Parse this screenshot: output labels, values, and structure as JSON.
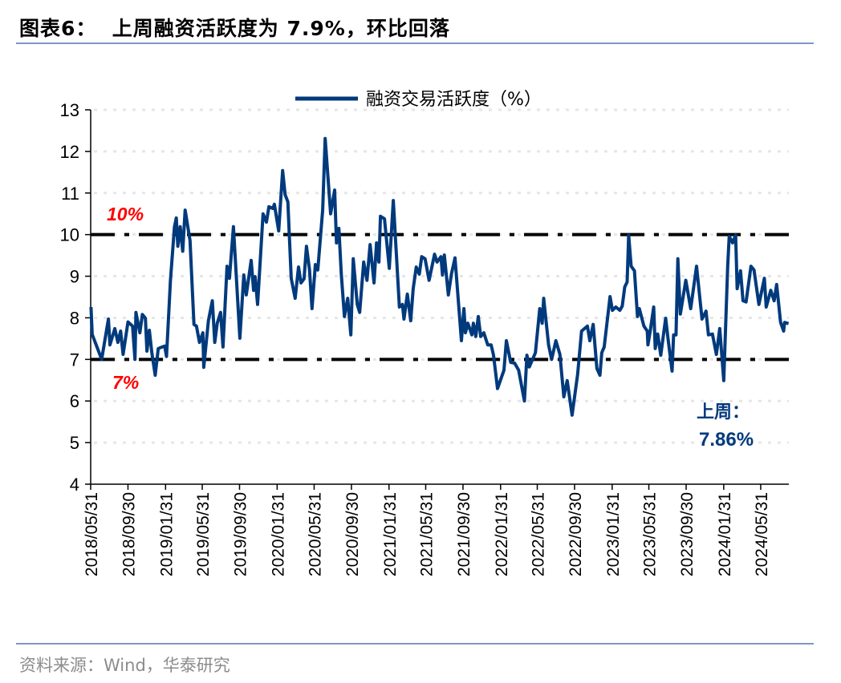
{
  "header": {
    "title": "图表6：  上周融资活跃度为 7.9%，环比回落"
  },
  "footer": {
    "source": "资料来源：Wind，华泰研究"
  },
  "colors": {
    "series": "#003a7d",
    "reference_lines": "#000000",
    "reference_labels": "#ff0000",
    "annotation": "#003a7d",
    "rules": "#7f96c4",
    "grid": "#e6e6e6"
  },
  "chart_data": {
    "type": "line",
    "title": "",
    "xlabel": "",
    "ylabel": "",
    "ylim": [
      4,
      13
    ],
    "xlim": [
      "2018-05-31",
      "2024-08-31"
    ],
    "yticks": [
      "4",
      "5",
      "6",
      "7",
      "8",
      "9",
      "10",
      "11",
      "12",
      "13"
    ],
    "xticks": [
      "2018/05/31",
      "2018/09/30",
      "2019/01/31",
      "2019/05/31",
      "2019/09/30",
      "2020/01/31",
      "2020/05/31",
      "2020/09/30",
      "2021/01/31",
      "2021/05/31",
      "2021/09/30",
      "2022/01/31",
      "2022/05/31",
      "2022/09/30",
      "2023/01/31",
      "2023/05/31",
      "2023/09/30",
      "2024/01/31",
      "2024/05/31"
    ],
    "grid": "horizontal dotted",
    "legend": "top-center",
    "reference_lines": [
      {
        "value": 10,
        "label": "10%",
        "style": "dash-dot"
      },
      {
        "value": 7,
        "label": "7%",
        "style": "dash-dot"
      }
    ],
    "annotation": {
      "label": "上周：",
      "value": "7.86%"
    },
    "series": [
      {
        "name": "融资交易活跃度（%）",
        "points": [
          [
            "2018-06-01",
            8.26
          ],
          [
            "2018-06-05",
            7.6
          ],
          [
            "2018-07-06",
            7.0
          ],
          [
            "2018-07-28",
            7.97
          ],
          [
            "2018-08-02",
            7.35
          ],
          [
            "2018-08-18",
            7.74
          ],
          [
            "2018-08-28",
            7.41
          ],
          [
            "2018-09-06",
            7.68
          ],
          [
            "2018-09-14",
            7.12
          ],
          [
            "2018-09-30",
            7.9
          ],
          [
            "2018-10-15",
            7.8
          ],
          [
            "2018-10-23",
            7.0
          ],
          [
            "2018-10-26",
            8.13
          ],
          [
            "2018-11-08",
            7.64
          ],
          [
            "2018-11-16",
            8.08
          ],
          [
            "2018-11-26",
            7.99
          ],
          [
            "2018-12-01",
            7.2
          ],
          [
            "2018-12-09",
            7.7
          ],
          [
            "2018-12-17",
            7.16
          ],
          [
            "2018-12-28",
            6.62
          ],
          [
            "2019-01-07",
            7.26
          ],
          [
            "2019-01-20",
            7.3
          ],
          [
            "2019-01-28",
            7.32
          ],
          [
            "2019-02-03",
            7.07
          ],
          [
            "2019-02-16",
            8.9
          ],
          [
            "2019-03-01",
            10.19
          ],
          [
            "2019-03-07",
            10.4
          ],
          [
            "2019-03-12",
            9.72
          ],
          [
            "2019-03-20",
            10.19
          ],
          [
            "2019-03-28",
            9.6
          ],
          [
            "2019-04-05",
            10.59
          ],
          [
            "2019-04-21",
            9.86
          ],
          [
            "2019-05-04",
            7.84
          ],
          [
            "2019-05-12",
            7.8
          ],
          [
            "2019-05-22",
            7.41
          ],
          [
            "2019-06-02",
            7.64
          ],
          [
            "2019-06-05",
            6.81
          ],
          [
            "2019-06-20",
            7.93
          ],
          [
            "2019-07-03",
            8.41
          ],
          [
            "2019-07-11",
            7.41
          ],
          [
            "2019-07-19",
            7.87
          ],
          [
            "2019-07-30",
            8.13
          ],
          [
            "2019-08-07",
            7.3
          ],
          [
            "2019-08-20",
            9.24
          ],
          [
            "2019-08-28",
            8.95
          ],
          [
            "2019-09-10",
            10.19
          ],
          [
            "2019-10-01",
            7.51
          ],
          [
            "2019-10-14",
            9.03
          ],
          [
            "2019-10-22",
            8.55
          ],
          [
            "2019-11-07",
            9.38
          ],
          [
            "2019-11-15",
            8.66
          ],
          [
            "2019-11-20",
            8.99
          ],
          [
            "2019-11-28",
            8.32
          ],
          [
            "2019-12-16",
            10.5
          ],
          [
            "2019-12-27",
            10.3
          ],
          [
            "2020-01-04",
            10.67
          ],
          [
            "2020-01-17",
            10.63
          ],
          [
            "2020-01-22",
            10.73
          ],
          [
            "2020-02-05",
            10.09
          ],
          [
            "2020-02-18",
            11.54
          ],
          [
            "2020-02-26",
            10.96
          ],
          [
            "2020-03-06",
            10.79
          ],
          [
            "2020-03-17",
            8.95
          ],
          [
            "2020-03-30",
            8.47
          ],
          [
            "2020-04-10",
            9.22
          ],
          [
            "2020-04-18",
            8.84
          ],
          [
            "2020-04-28",
            8.94
          ],
          [
            "2020-05-06",
            9.72
          ],
          [
            "2020-05-16",
            9.15
          ],
          [
            "2020-05-24",
            8.22
          ],
          [
            "2020-06-04",
            9.28
          ],
          [
            "2020-06-12",
            9.15
          ],
          [
            "2020-06-28",
            10.59
          ],
          [
            "2020-07-06",
            12.31
          ],
          [
            "2020-07-24",
            10.5
          ],
          [
            "2020-08-06",
            11.07
          ],
          [
            "2020-08-12",
            9.8
          ],
          [
            "2020-08-20",
            10.15
          ],
          [
            "2020-08-28",
            9.05
          ],
          [
            "2020-09-07",
            8.03
          ],
          [
            "2020-09-18",
            8.47
          ],
          [
            "2020-09-28",
            7.59
          ],
          [
            "2020-10-06",
            9.42
          ],
          [
            "2020-10-19",
            8.32
          ],
          [
            "2020-10-27",
            8.13
          ],
          [
            "2020-11-09",
            9.34
          ],
          [
            "2020-11-20",
            8.9
          ],
          [
            "2020-11-30",
            9.76
          ],
          [
            "2020-12-13",
            8.84
          ],
          [
            "2020-12-21",
            9.8
          ],
          [
            "2020-12-29",
            9.34
          ],
          [
            "2021-01-03",
            10.44
          ],
          [
            "2021-01-16",
            10.38
          ],
          [
            "2021-02-01",
            9.19
          ],
          [
            "2021-02-14",
            10.82
          ],
          [
            "2021-03-06",
            8.26
          ],
          [
            "2021-03-16",
            8.32
          ],
          [
            "2021-03-21",
            7.97
          ],
          [
            "2021-04-01",
            8.57
          ],
          [
            "2021-04-12",
            7.93
          ],
          [
            "2021-04-20",
            8.7
          ],
          [
            "2021-04-30",
            9.22
          ],
          [
            "2021-05-10",
            9.05
          ],
          [
            "2021-05-18",
            9.47
          ],
          [
            "2021-05-29",
            9.42
          ],
          [
            "2021-06-11",
            8.9
          ],
          [
            "2021-06-29",
            9.53
          ],
          [
            "2021-07-07",
            9.34
          ],
          [
            "2021-07-20",
            9.47
          ],
          [
            "2021-07-25",
            9.03
          ],
          [
            "2021-07-31",
            9.51
          ],
          [
            "2021-08-13",
            8.55
          ],
          [
            "2021-08-23",
            9.05
          ],
          [
            "2021-09-04",
            9.44
          ],
          [
            "2021-09-25",
            7.45
          ],
          [
            "2021-10-03",
            8.22
          ],
          [
            "2021-10-08",
            7.64
          ],
          [
            "2021-10-16",
            7.87
          ],
          [
            "2021-10-29",
            7.59
          ],
          [
            "2021-11-03",
            7.87
          ],
          [
            "2021-11-11",
            7.55
          ],
          [
            "2021-11-19",
            8.03
          ],
          [
            "2021-11-27",
            7.55
          ],
          [
            "2021-12-07",
            7.64
          ],
          [
            "2021-12-20",
            7.35
          ],
          [
            "2021-12-31",
            7.35
          ],
          [
            "2022-01-08",
            7.1
          ],
          [
            "2022-01-21",
            6.3
          ],
          [
            "2022-02-11",
            6.74
          ],
          [
            "2022-02-19",
            7.45
          ],
          [
            "2022-03-05",
            6.93
          ],
          [
            "2022-03-18",
            6.91
          ],
          [
            "2022-03-31",
            6.74
          ],
          [
            "2022-04-19",
            6.0
          ],
          [
            "2022-04-27",
            7.1
          ],
          [
            "2022-05-05",
            6.82
          ],
          [
            "2022-05-25",
            7.16
          ],
          [
            "2022-06-08",
            8.22
          ],
          [
            "2022-06-16",
            7.87
          ],
          [
            "2022-06-21",
            8.47
          ],
          [
            "2022-07-07",
            7.35
          ],
          [
            "2022-07-17",
            7.0
          ],
          [
            "2022-07-31",
            7.45
          ],
          [
            "2022-08-13",
            7.12
          ],
          [
            "2022-08-26",
            6.1
          ],
          [
            "2022-09-06",
            6.49
          ],
          [
            "2022-09-22",
            5.66
          ],
          [
            "2022-10-10",
            6.64
          ],
          [
            "2022-10-23",
            7.68
          ],
          [
            "2022-11-11",
            7.8
          ],
          [
            "2022-11-19",
            7.45
          ],
          [
            "2022-11-30",
            7.84
          ],
          [
            "2022-12-12",
            6.78
          ],
          [
            "2022-12-22",
            6.62
          ],
          [
            "2022-12-28",
            7.16
          ],
          [
            "2023-01-05",
            7.3
          ],
          [
            "2023-01-24",
            8.51
          ],
          [
            "2023-02-01",
            8.18
          ],
          [
            "2023-02-12",
            8.26
          ],
          [
            "2023-02-25",
            8.18
          ],
          [
            "2023-03-05",
            8.28
          ],
          [
            "2023-03-13",
            8.74
          ],
          [
            "2023-03-21",
            8.86
          ],
          [
            "2023-03-26",
            9.99
          ],
          [
            "2023-04-03",
            9.24
          ],
          [
            "2023-04-14",
            9.13
          ],
          [
            "2023-04-24",
            8.03
          ],
          [
            "2023-04-30",
            8.22
          ],
          [
            "2023-05-15",
            7.8
          ],
          [
            "2023-05-26",
            7.68
          ],
          [
            "2023-05-28",
            7.35
          ],
          [
            "2023-06-05",
            7.7
          ],
          [
            "2023-06-16",
            8.26
          ],
          [
            "2023-06-21",
            7.26
          ],
          [
            "2023-06-29",
            7.61
          ],
          [
            "2023-07-09",
            7.1
          ],
          [
            "2023-07-25",
            7.99
          ],
          [
            "2023-08-02",
            7.49
          ],
          [
            "2023-08-15",
            6.72
          ],
          [
            "2023-08-20",
            7.59
          ],
          [
            "2023-08-28",
            7.59
          ],
          [
            "2023-09-03",
            9.42
          ],
          [
            "2023-09-11",
            8.09
          ],
          [
            "2023-09-29",
            8.9
          ],
          [
            "2023-10-15",
            8.22
          ],
          [
            "2023-11-03",
            9.24
          ],
          [
            "2023-11-21",
            7.97
          ],
          [
            "2023-12-04",
            8.16
          ],
          [
            "2023-12-12",
            7.59
          ],
          [
            "2023-12-25",
            7.61
          ],
          [
            "2024-01-07",
            7.12
          ],
          [
            "2024-01-18",
            7.74
          ],
          [
            "2024-01-31",
            6.49
          ],
          [
            "2024-02-13",
            9.24
          ],
          [
            "2024-02-18",
            9.96
          ],
          [
            "2024-02-29",
            9.8
          ],
          [
            "2024-03-10",
            9.99
          ],
          [
            "2024-03-15",
            8.7
          ],
          [
            "2024-03-26",
            9.13
          ],
          [
            "2024-04-03",
            8.41
          ],
          [
            "2024-04-13",
            8.38
          ],
          [
            "2024-04-29",
            9.24
          ],
          [
            "2024-05-09",
            9.15
          ],
          [
            "2024-05-25",
            8.32
          ],
          [
            "2024-06-12",
            8.95
          ],
          [
            "2024-06-18",
            8.26
          ],
          [
            "2024-07-03",
            8.66
          ],
          [
            "2024-07-14",
            8.41
          ],
          [
            "2024-07-22",
            8.8
          ],
          [
            "2024-08-04",
            7.89
          ],
          [
            "2024-08-14",
            7.68
          ],
          [
            "2024-08-17",
            7.89
          ],
          [
            "2024-08-30",
            7.86
          ]
        ]
      }
    ]
  }
}
